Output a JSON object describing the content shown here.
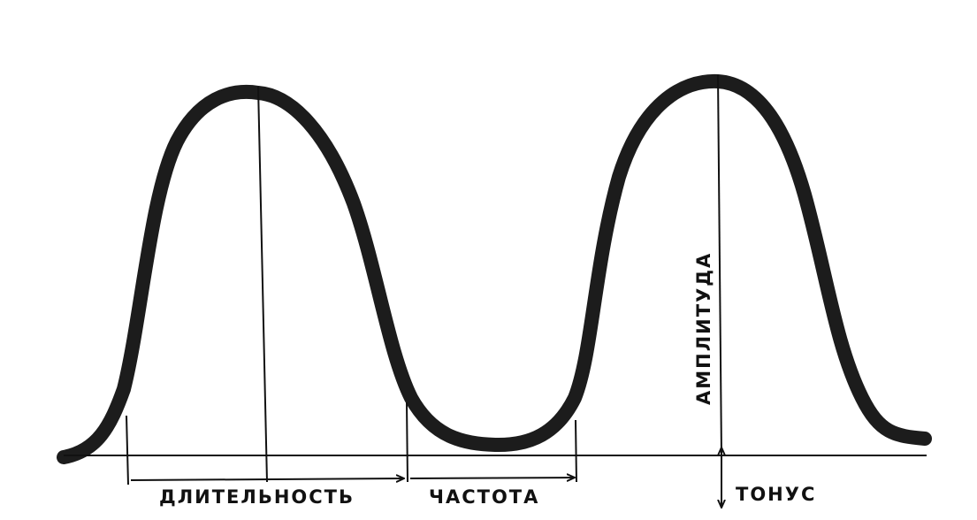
{
  "labels": {
    "duration": "ДЛИТЕЛЬНОСТЬ",
    "frequency": "ЧАСТОТА",
    "amplitude": "АМПЛИТУДА",
    "tone": "ТОНУС"
  }
}
